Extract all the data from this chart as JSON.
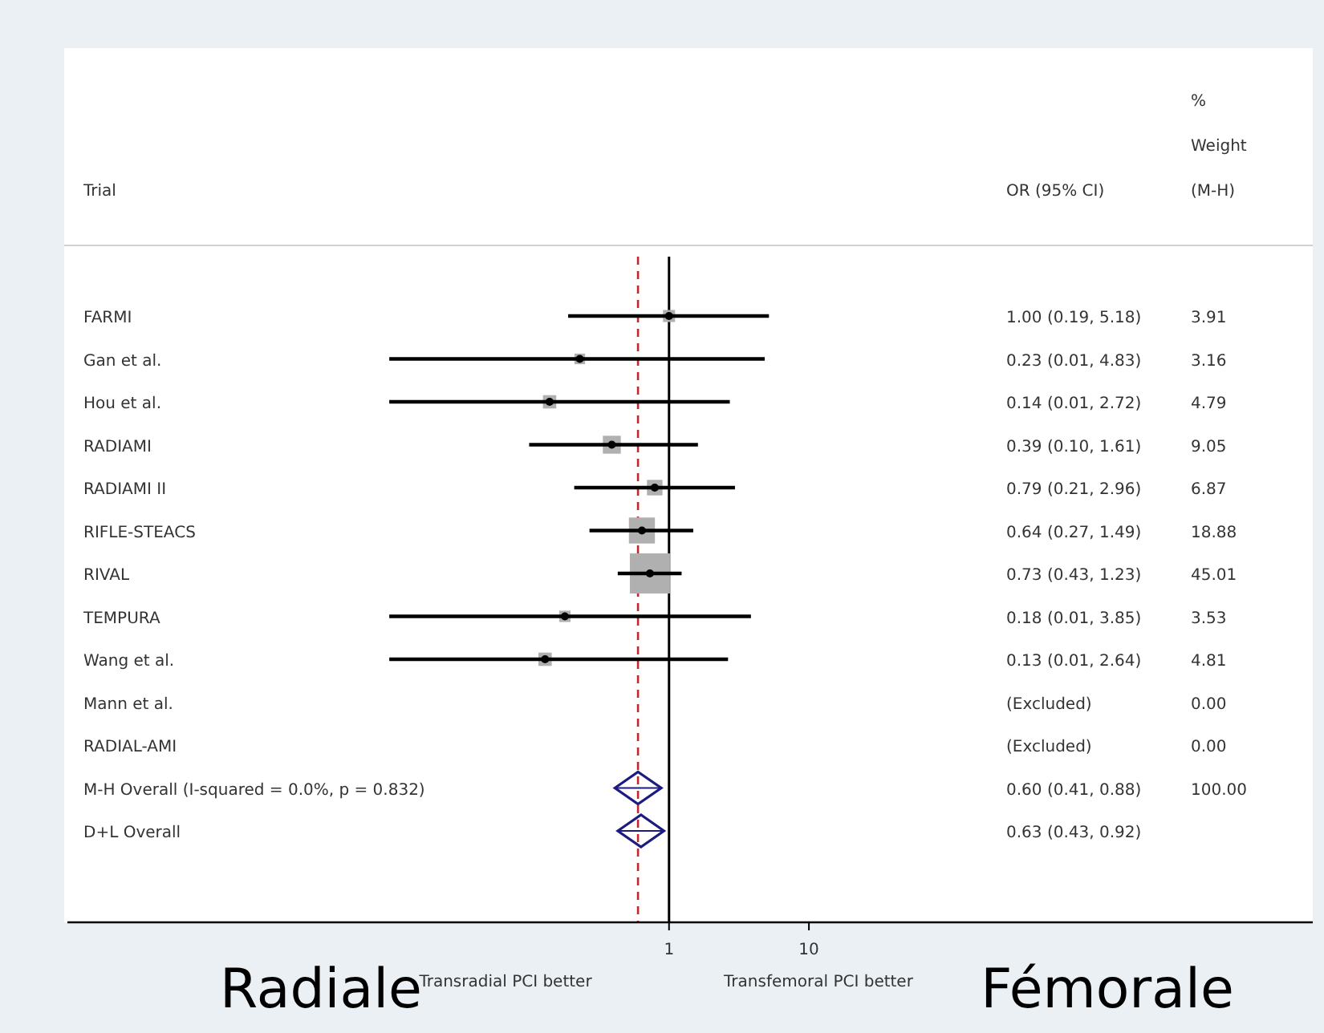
{
  "chart_data": {
    "type": "scatter",
    "log": "x",
    "orientation": "horizontal",
    "categories": [
      "FARMI",
      "Gan et al.",
      "Hou et al.",
      "RADIAMI",
      "RADIAMI II",
      "RIFLE-STEACS",
      "RIVAL",
      "TEMPURA",
      "Wang et al.",
      "Mann et al.",
      "RADIAL-AMI",
      "M-H Overall  (I-squared = 0.0%, p = 0.832)",
      "D+L Overall"
    ],
    "series": [
      {
        "marker": "square",
        "color": "#b0b0b0",
        "values": [
          1.0,
          0.23,
          0.14,
          0.39,
          0.79,
          0.64,
          0.73,
          0.18,
          0.13,
          null,
          null,
          null,
          null
        ],
        "errors": [
          [
            0.19,
            5.18
          ],
          [
            0.01,
            4.83
          ],
          [
            0.01,
            2.72
          ],
          [
            0.1,
            1.61
          ],
          [
            0.21,
            2.96
          ],
          [
            0.27,
            1.49
          ],
          [
            0.43,
            1.23
          ],
          [
            0.01,
            3.85
          ],
          [
            0.01,
            2.64
          ],
          null,
          null,
          null,
          null
        ],
        "sizes": [
          0.09,
          0.07,
          0.11,
          0.2,
          0.15,
          0.42,
          1,
          0.08,
          0.11,
          null,
          null,
          null,
          null
        ]
      },
      {
        "marker": "diamond",
        "color": "#1c1c80",
        "values": [
          null,
          null,
          null,
          null,
          null,
          null,
          null,
          null,
          null,
          null,
          null,
          0.6,
          0.63
        ],
        "errors": [
          null,
          null,
          null,
          null,
          null,
          null,
          null,
          null,
          null,
          null,
          null,
          [
            0.41,
            0.88
          ],
          [
            0.43,
            0.92
          ]
        ]
      }
    ],
    "xlim": [
      5e-05,
      40000
    ],
    "xticks": [
      1,
      10
    ],
    "grid": false,
    "ref_lines": [
      {
        "axis": "x",
        "value": 1,
        "color": "#000000",
        "line_style": "solid"
      },
      {
        "axis": "x",
        "value": 0.6,
        "color": "#c0282d",
        "line_style": "dashed"
      }
    ],
    "annotations": [
      "Trial",
      "OR (95% CI)",
      "%",
      "Weight",
      "(M-H)",
      "Radiale",
      "Fémorale",
      "Transradial PCI better",
      "Transfemoral PCI better",
      "1.00 (0.19, 5.18)",
      "0.23 (0.01, 4.83)",
      "0.14 (0.01, 2.72)",
      "0.39 (0.10, 1.61)",
      "0.79 (0.21, 2.96)",
      "0.64 (0.27, 1.49)",
      "0.73 (0.43, 1.23)",
      "0.18 (0.01, 3.85)",
      "0.13 (0.01, 2.64)",
      "(Excluded)",
      "(Excluded)",
      "0.60 (0.41, 0.88)",
      "0.63 (0.43, 0.92)",
      "3.91",
      "3.16",
      "4.79",
      "9.05",
      "6.87",
      "18.88",
      "45.01",
      "3.53",
      "4.81",
      "0.00",
      "0.00",
      "100.00"
    ]
  }
}
